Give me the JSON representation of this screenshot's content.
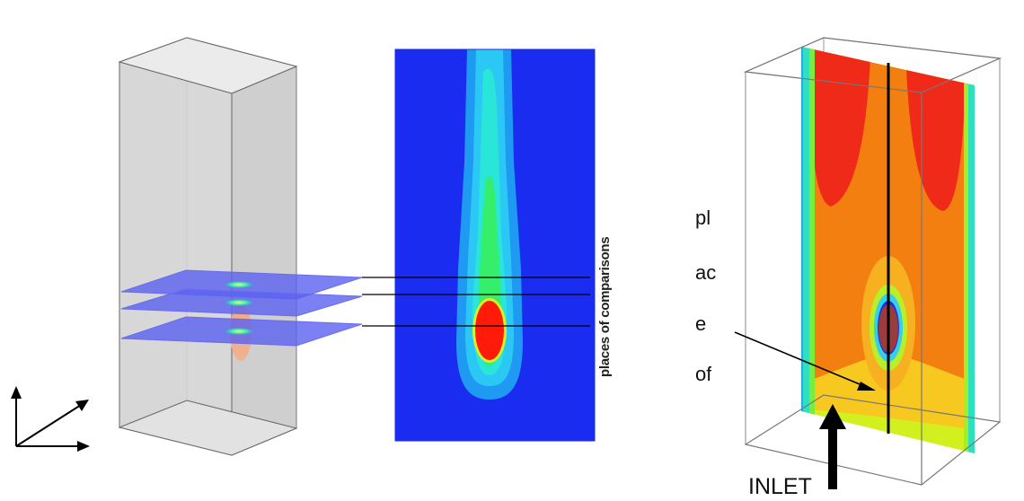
{
  "labels": {
    "places_of_comparisons": "places of comparisons",
    "side_word_lines": [
      "pl",
      "ac",
      "e",
      "of"
    ],
    "inlet": "INLET"
  },
  "colors": {
    "contour_background": "#1a2cf0",
    "hot_core": "#ff1a0a",
    "plane_fill": "#5a62f0",
    "box_fill": "#d6d6d6",
    "box_edge": "#555555",
    "red_zone": "#ef2a18",
    "orange_zone": "#f37f10",
    "yellow_zone": "#f7c820",
    "lime_zone": "#d2f01e"
  }
}
